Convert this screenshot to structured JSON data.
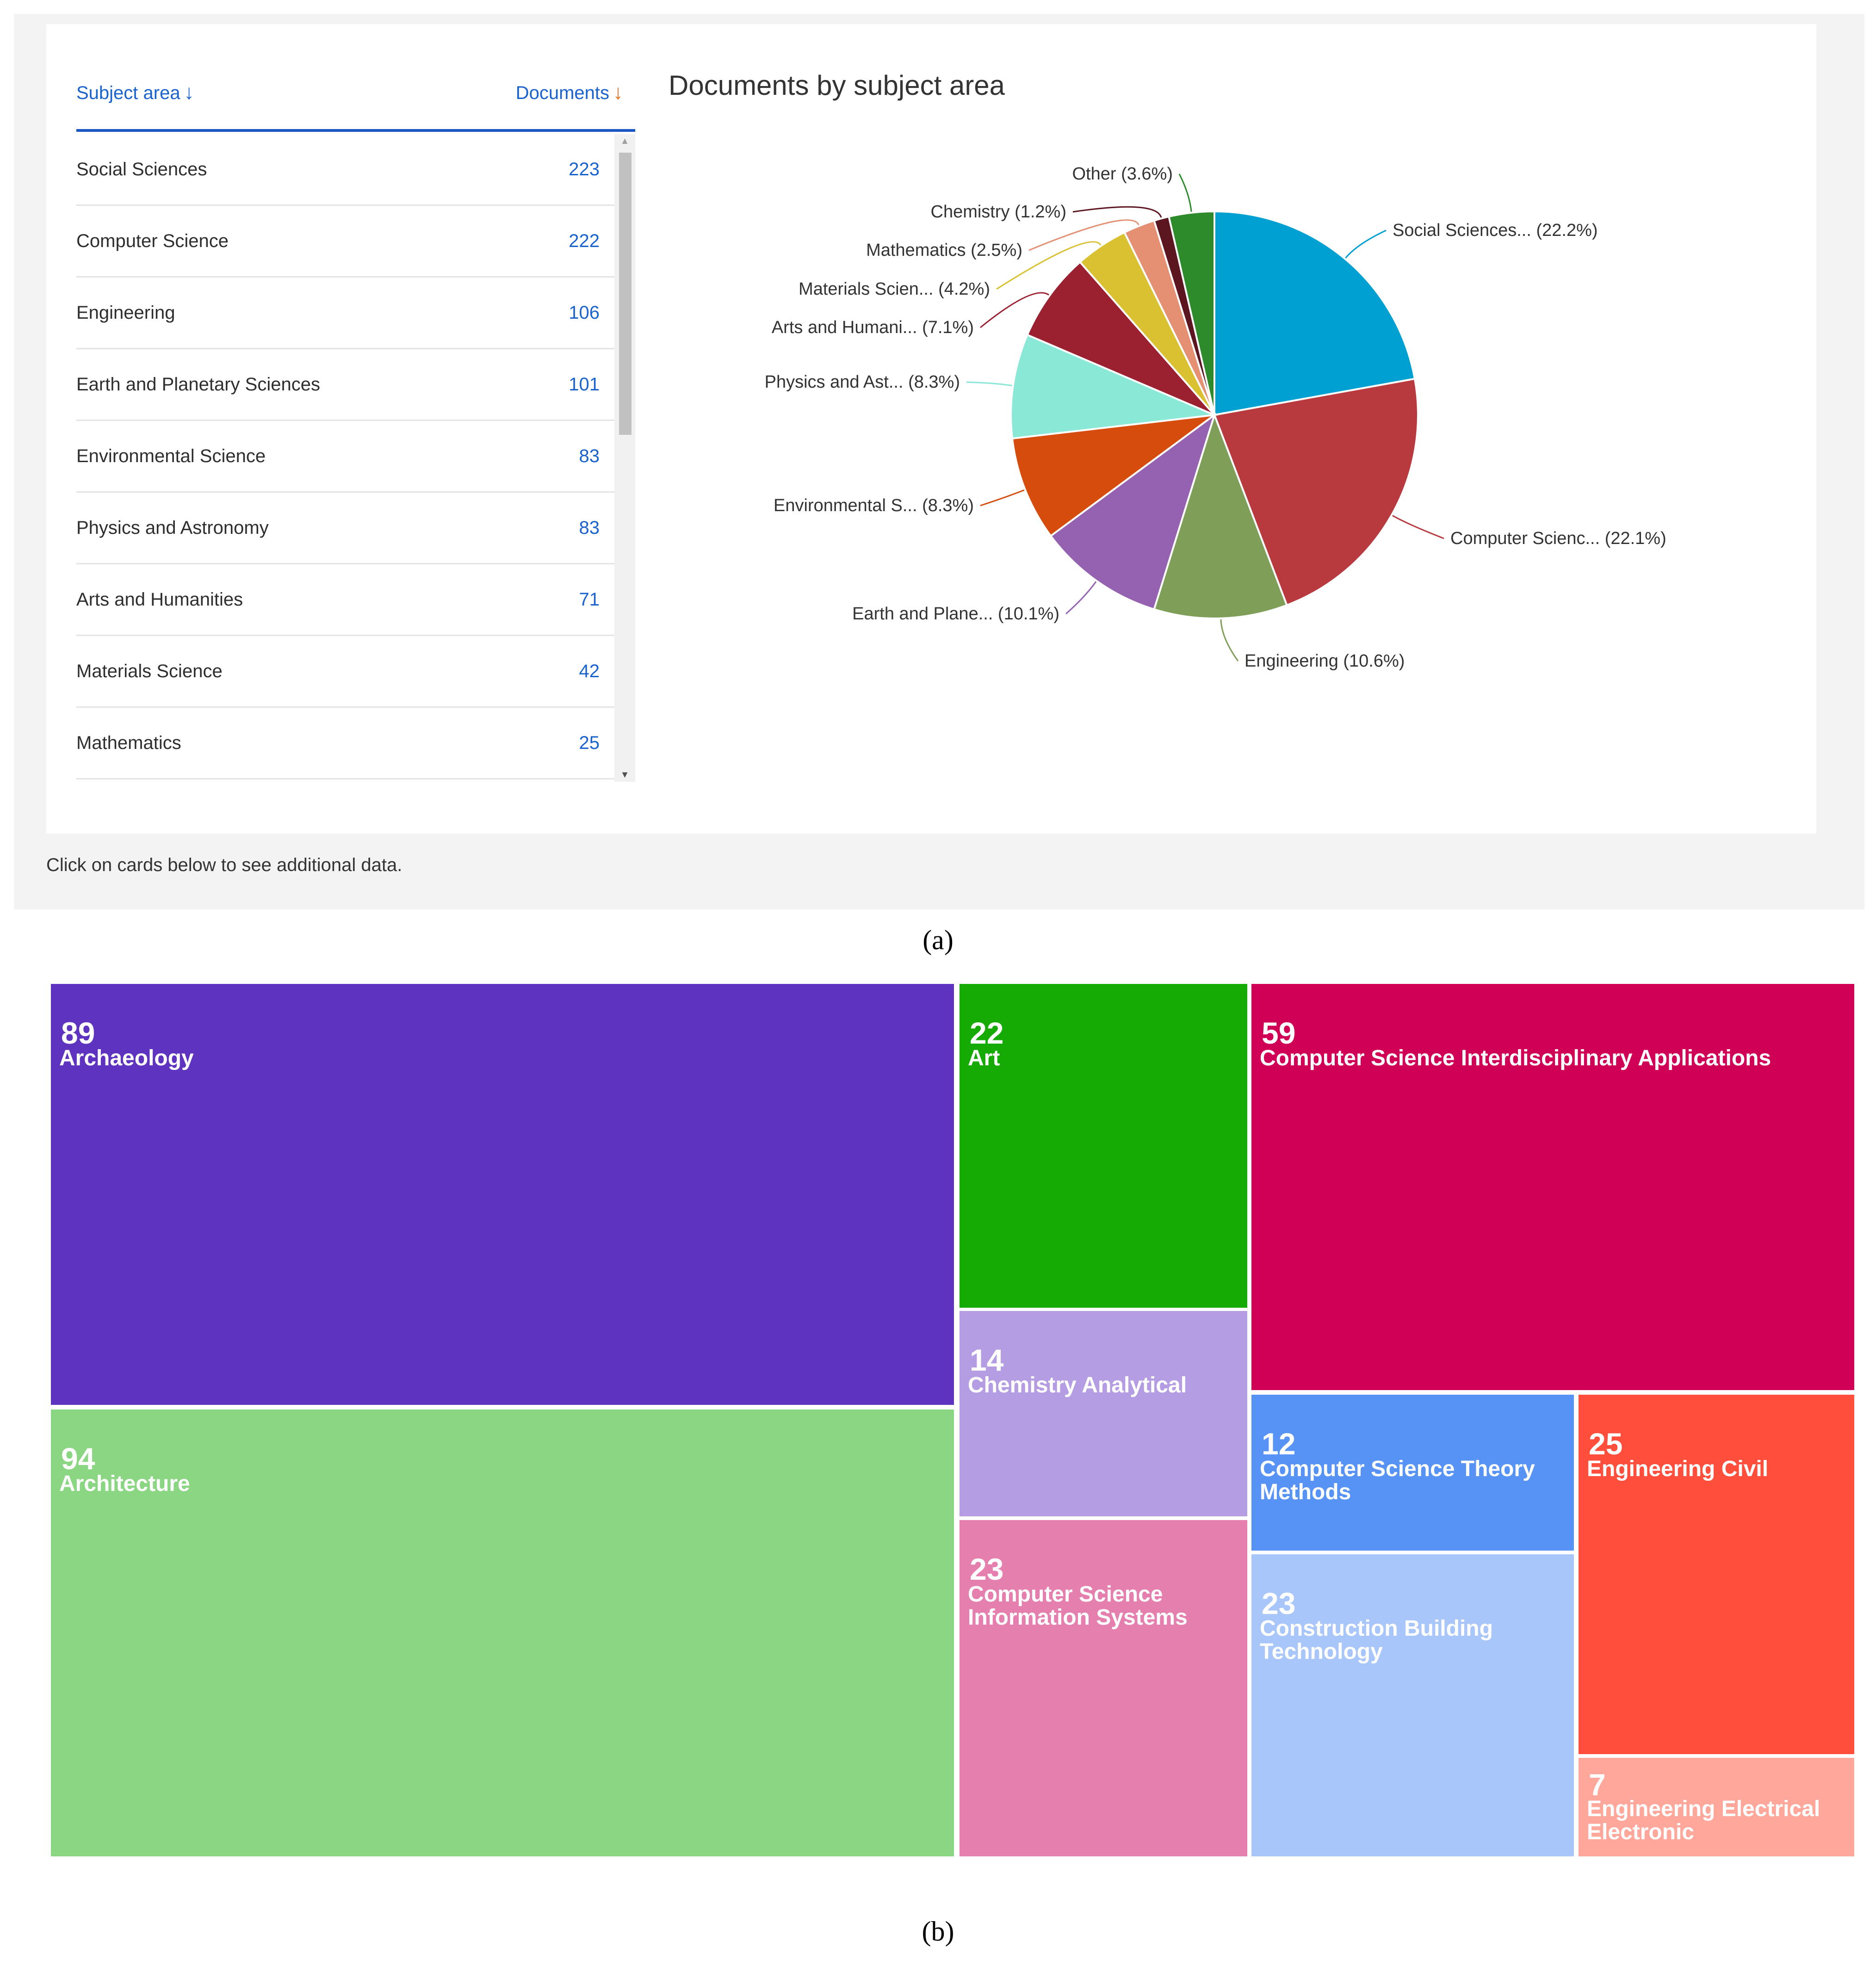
{
  "table": {
    "header": {
      "subject_label": "Subject area",
      "subject_arrow": "↓",
      "documents_label": "Documents",
      "documents_arrow": "↓"
    },
    "rows": [
      {
        "name": "Social Sciences",
        "count": "223"
      },
      {
        "name": "Computer Science",
        "count": "222"
      },
      {
        "name": "Engineering",
        "count": "106"
      },
      {
        "name": "Earth and Planetary Sciences",
        "count": "101"
      },
      {
        "name": "Environmental Science",
        "count": "83"
      },
      {
        "name": "Physics and Astronomy",
        "count": "83"
      },
      {
        "name": "Arts and Humanities",
        "count": "71"
      },
      {
        "name": "Materials Science",
        "count": "42"
      },
      {
        "name": "Mathematics",
        "count": "25"
      }
    ]
  },
  "hint": "Click on cards below to see additional data.",
  "captions": {
    "a": "(a)",
    "b": "(b)"
  },
  "chart_data": [
    {
      "type": "pie",
      "title": "Documents by subject area",
      "slices": [
        {
          "label": "Social Sciences... (22.2%)",
          "value": 22.2,
          "color": "#00a0d2"
        },
        {
          "label": "Computer Scienc... (22.1%)",
          "value": 22.1,
          "color": "#b83a3e"
        },
        {
          "label": "Engineering (10.6%)",
          "value": 10.6,
          "color": "#7f9f59"
        },
        {
          "label": "Earth and Plane... (10.1%)",
          "value": 10.1,
          "color": "#9462b0"
        },
        {
          "label": "Environmental S... (8.3%)",
          "value": 8.3,
          "color": "#d64c0c"
        },
        {
          "label": "Physics and Ast... (8.3%)",
          "value": 8.3,
          "color": "#8ae8d6"
        },
        {
          "label": "Arts and Humani... (7.1%)",
          "value": 7.1,
          "color": "#9b2130"
        },
        {
          "label": "Materials Scien... (4.2%)",
          "value": 4.2,
          "color": "#d9c132"
        },
        {
          "label": "Mathematics (2.5%)",
          "value": 2.5,
          "color": "#e58f73"
        },
        {
          "label": "Chemistry (1.2%)",
          "value": 1.2,
          "color": "#5c1620"
        },
        {
          "label": "Other (3.6%)",
          "value": 3.6,
          "color": "#2e8b2b"
        }
      ]
    },
    {
      "type": "treemap",
      "items": [
        {
          "value": "89",
          "label": "Archaeology",
          "color": "#5e33bf"
        },
        {
          "value": "94",
          "label": "Architecture",
          "color": "#8bd683"
        },
        {
          "value": "22",
          "label": "Art",
          "color": "#15aa04"
        },
        {
          "value": "14",
          "label": "Chemistry Analytical",
          "color": "#b49de2"
        },
        {
          "value": "23",
          "label": "Computer Science Information Systems",
          "color": "#e57fae"
        },
        {
          "value": "59",
          "label": "Computer Science Interdisciplinary Applications",
          "color": "#d00056"
        },
        {
          "value": "12",
          "label": "Computer Science Theory Methods",
          "color": "#5693f5"
        },
        {
          "value": "23",
          "label": "Construction Building Technology",
          "color": "#a9c6fa"
        },
        {
          "value": "25",
          "label": "Engineering Civil",
          "color": "#ff4f3c"
        },
        {
          "value": "7",
          "label": "Engineering Electrical Electronic",
          "color": "#ffa79b"
        }
      ]
    }
  ]
}
